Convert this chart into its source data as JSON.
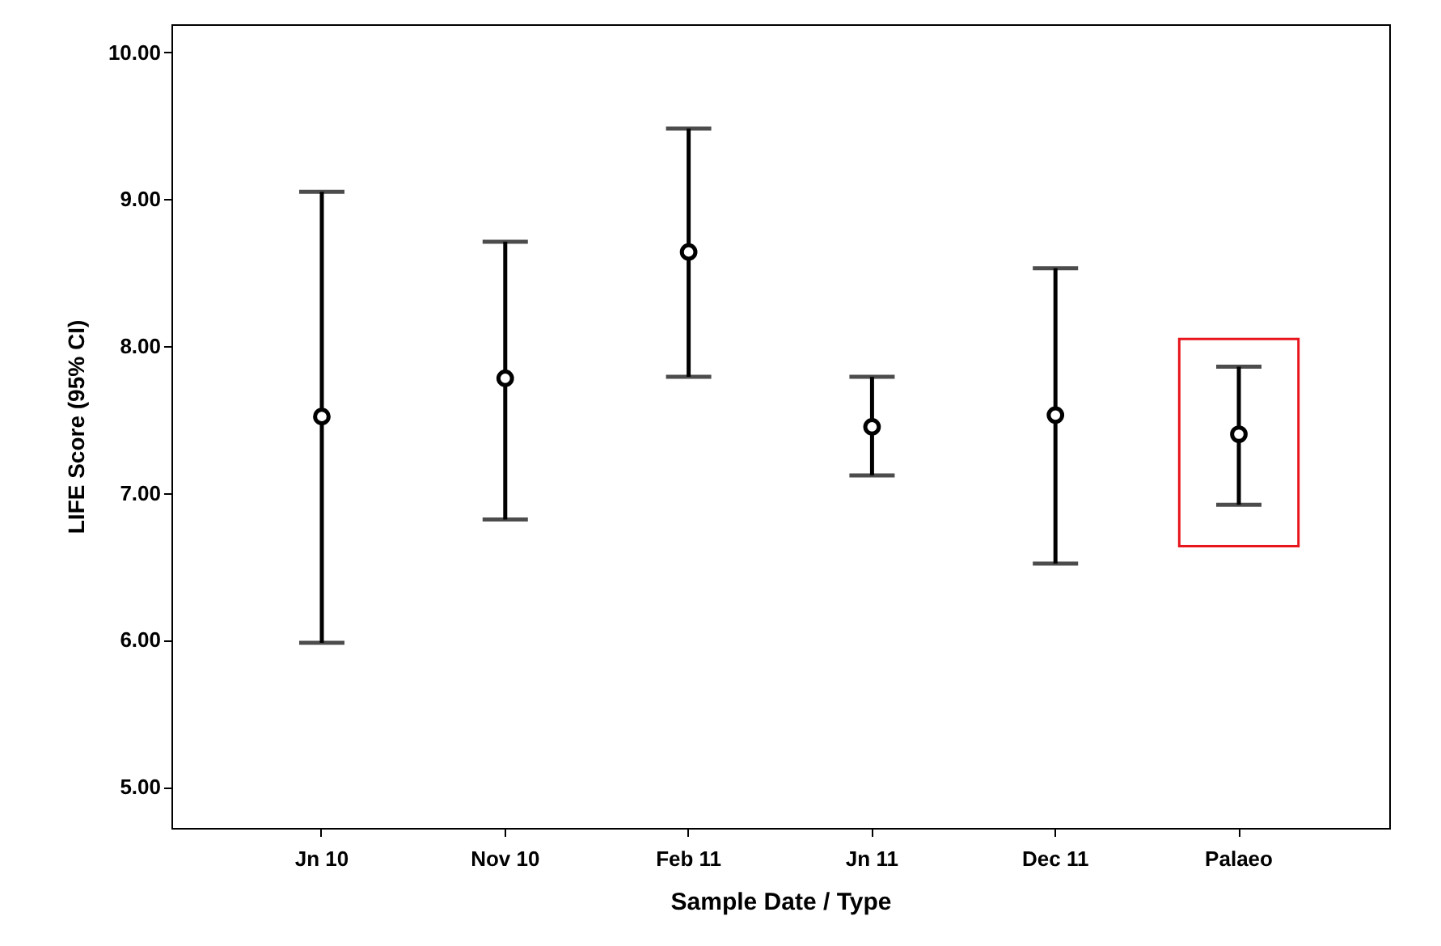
{
  "chart_data": {
    "type": "scatter",
    "xlabel": "Sample Date / Type",
    "ylabel": "LIFE Score  (95% CI)",
    "categories": [
      "Jn 10",
      "Nov 10",
      "Feb 11",
      "Jn 11",
      "Dec 11",
      "Palaeo"
    ],
    "series": [
      {
        "color": "#000000",
        "values": [
          7.52,
          7.78,
          8.64,
          7.45,
          7.53,
          7.4
        ],
        "errors": [
          [
            5.98,
            9.05
          ],
          [
            6.82,
            8.71
          ],
          [
            7.79,
            9.48
          ],
          [
            7.12,
            7.79
          ],
          [
            6.52,
            8.53
          ],
          [
            6.92,
            7.86
          ]
        ]
      }
    ],
    "marker": "circle",
    "grid": false,
    "ylim": [
      4.72,
      10.19
    ],
    "yticks": [
      {
        "value": 5,
        "label": "5.00"
      },
      {
        "value": 6,
        "label": "6.00"
      },
      {
        "value": 7,
        "label": "7.00"
      },
      {
        "value": 8,
        "label": "8.00"
      },
      {
        "value": 9,
        "label": "9.00"
      },
      {
        "value": 10,
        "label": "10.00"
      }
    ]
  }
}
